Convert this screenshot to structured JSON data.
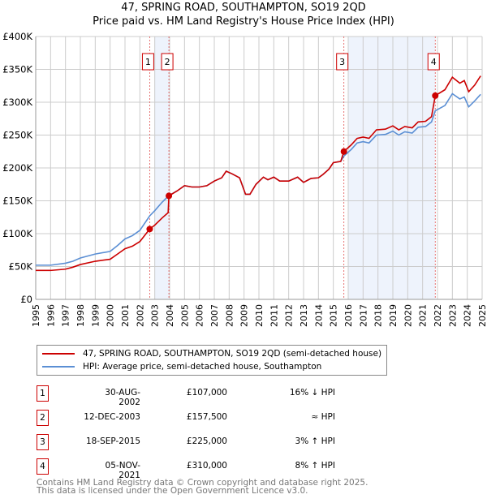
{
  "chart_data": {
    "type": "line",
    "title": "47, SPRING ROAD, SOUTHAMPTON, SO19 2QD",
    "subtitle": "Price paid vs. HM Land Registry's House Price Index (HPI)",
    "xlim": [
      1995,
      2025
    ],
    "ylim": [
      0,
      400000
    ],
    "x_ticks": [
      "1995",
      "1996",
      "1997",
      "1998",
      "1999",
      "2000",
      "2001",
      "2002",
      "2003",
      "2004",
      "2005",
      "2006",
      "2007",
      "2008",
      "2009",
      "2010",
      "2011",
      "2012",
      "2013",
      "2014",
      "2015",
      "2016",
      "2017",
      "2018",
      "2019",
      "2020",
      "2021",
      "2022",
      "2023",
      "2024",
      "2025"
    ],
    "y_ticks": [
      {
        "v": 0,
        "label": "£0"
      },
      {
        "v": 50000,
        "label": "£50K"
      },
      {
        "v": 100000,
        "label": "£100K"
      },
      {
        "v": 150000,
        "label": "£150K"
      },
      {
        "v": 200000,
        "label": "£200K"
      },
      {
        "v": 250000,
        "label": "£250K"
      },
      {
        "v": 300000,
        "label": "£300K"
      },
      {
        "v": 350000,
        "label": "£350K"
      },
      {
        "v": 400000,
        "label": "£400K"
      }
    ],
    "grid": true,
    "series": [
      {
        "name": "47, SPRING ROAD, SOUTHAMPTON, SO19 2QD (semi-detached house)",
        "color": "#cc0000",
        "x": [
          1995,
          1996,
          1997,
          1997.5,
          1998,
          1999,
          2000,
          2000.5,
          2001,
          2001.5,
          2002,
          2002.66,
          2003,
          2003.5,
          2003.9,
          2003.95,
          2004.5,
          2005,
          2005.5,
          2006,
          2006.5,
          2007,
          2007.5,
          2007.8,
          2008.2,
          2008.7,
          2009.1,
          2009.4,
          2009.8,
          2010.3,
          2010.6,
          2011,
          2011.4,
          2012,
          2012.6,
          2013,
          2013.5,
          2014,
          2014.3,
          2014.7,
          2015,
          2015.5,
          2015.71,
          2016.2,
          2016.6,
          2017,
          2017.4,
          2017.9,
          2018.5,
          2019,
          2019.4,
          2019.8,
          2020.3,
          2020.7,
          2021.2,
          2021.6,
          2021.85,
          2022.5,
          2023,
          2023.5,
          2023.8,
          2024.1,
          2024.5,
          2024.9
        ],
        "y": [
          44,
          44,
          46,
          49,
          53,
          58,
          61,
          69,
          77,
          81,
          88,
          107,
          113,
          124,
          132,
          157.5,
          165,
          173,
          171,
          171,
          173,
          180,
          185,
          195,
          191,
          185,
          160,
          160,
          175,
          186,
          182,
          186,
          180,
          180,
          186,
          178,
          184,
          185,
          190,
          198,
          208,
          210,
          225,
          235,
          245,
          247,
          245,
          258,
          259,
          264,
          258,
          263,
          261,
          270,
          271,
          278,
          310,
          319,
          338,
          329,
          333,
          316,
          326,
          340
        ]
      },
      {
        "name": "HPI: Average price, semi-detached house, Southampton",
        "color": "#5b8fd4",
        "x": [
          1995,
          1996,
          1997,
          1997.5,
          1998,
          1999,
          2000,
          2000.5,
          2001,
          2001.5,
          2002,
          2002.66,
          2003,
          2003.5,
          2003.95,
          2004.5,
          2005,
          2005.5,
          2006,
          2006.5,
          2007,
          2007.5,
          2007.8,
          2008.2,
          2008.7,
          2009.1,
          2009.4,
          2009.8,
          2010.3,
          2010.6,
          2011,
          2011.4,
          2012,
          2012.6,
          2013,
          2013.5,
          2014,
          2014.3,
          2014.7,
          2015,
          2015.5,
          2015.71,
          2016.2,
          2016.6,
          2017,
          2017.4,
          2017.9,
          2018.5,
          2019,
          2019.4,
          2019.8,
          2020.3,
          2020.7,
          2021.2,
          2021.6,
          2021.85,
          2022.5,
          2023,
          2023.5,
          2023.8,
          2024.1,
          2024.5,
          2024.9
        ],
        "y": [
          52,
          52,
          55,
          58,
          63,
          69,
          73,
          82,
          92,
          97,
          105,
          127,
          135,
          148,
          158,
          165,
          173,
          171,
          171,
          173,
          180,
          185,
          195,
          191,
          185,
          160,
          160,
          175,
          186,
          182,
          186,
          180,
          180,
          186,
          178,
          184,
          185,
          190,
          198,
          208,
          210,
          218,
          228,
          238,
          240,
          238,
          250,
          251,
          256,
          250,
          255,
          253,
          262,
          263,
          270,
          287,
          295,
          313,
          305,
          308,
          293,
          302,
          312
        ]
      }
    ],
    "y_units": "£ thousands in series values",
    "shaded_ranges": [
      [
        2003.0,
        2003.95
      ],
      [
        2016.0,
        2021.85
      ]
    ],
    "sales": [
      {
        "n": "1",
        "x": 2002.66,
        "y": 107,
        "date": "30-AUG-2002",
        "price": "£107,000",
        "rel": "16% ↓ HPI"
      },
      {
        "n": "2",
        "x": 2003.95,
        "y": 157.5,
        "date": "12-DEC-2003",
        "price": "£157,500",
        "rel": "≈ HPI"
      },
      {
        "n": "3",
        "x": 2015.71,
        "y": 225,
        "date": "18-SEP-2015",
        "price": "£225,000",
        "rel": "3% ↑ HPI"
      },
      {
        "n": "4",
        "x": 2021.85,
        "y": 310,
        "date": "05-NOV-2021",
        "price": "£310,000",
        "rel": "8% ↑ HPI"
      }
    ]
  },
  "footer": {
    "line1": "Contains HM Land Registry data © Crown copyright and database right 2025.",
    "line2": "This data is licensed under the Open Government Licence v3.0."
  }
}
